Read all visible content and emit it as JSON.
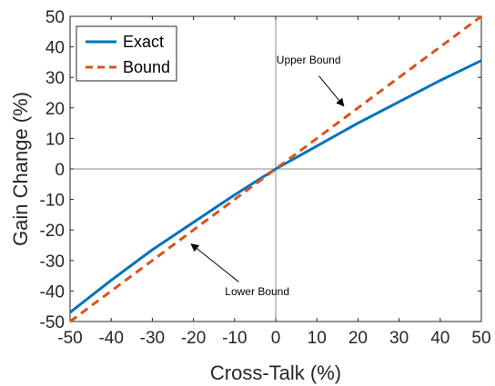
{
  "chart_data": {
    "type": "line",
    "xlabel": "Cross-Talk (%)",
    "ylabel": "Gain Change (%)",
    "xlim": [
      -50,
      50
    ],
    "ylim": [
      -50,
      50
    ],
    "xticks": [
      -50,
      -40,
      -30,
      -20,
      -10,
      0,
      10,
      20,
      30,
      40,
      50
    ],
    "yticks": [
      -50,
      -40,
      -30,
      -20,
      -10,
      0,
      10,
      20,
      30,
      40,
      50
    ],
    "grid": false,
    "reference_lines": {
      "x": 0,
      "y": 0
    },
    "legend_position": "top-left",
    "series": [
      {
        "name": "Exact",
        "style": "solid",
        "color": "#0072BD",
        "x": [
          -50,
          -40,
          -30,
          -20,
          -10,
          0,
          10,
          20,
          30,
          40,
          50
        ],
        "y": [
          -47,
          -36.5,
          -26.5,
          -17.5,
          -8.5,
          0,
          7.5,
          15,
          22,
          29,
          35.5
        ]
      },
      {
        "name": "Bound",
        "style": "dashed",
        "color": "#D95319",
        "x": [
          -50,
          -40,
          -30,
          -20,
          -10,
          0,
          10,
          20,
          30,
          40,
          50
        ],
        "y": [
          -50,
          -40,
          -30,
          -20,
          -10,
          0,
          10,
          20,
          30,
          40,
          50
        ]
      }
    ],
    "annotations": [
      {
        "text": "Upper Bound",
        "arrow_to": [
          17,
          20
        ]
      },
      {
        "text": "Lower Bound",
        "arrow_to": [
          -21,
          -24
        ]
      }
    ]
  }
}
